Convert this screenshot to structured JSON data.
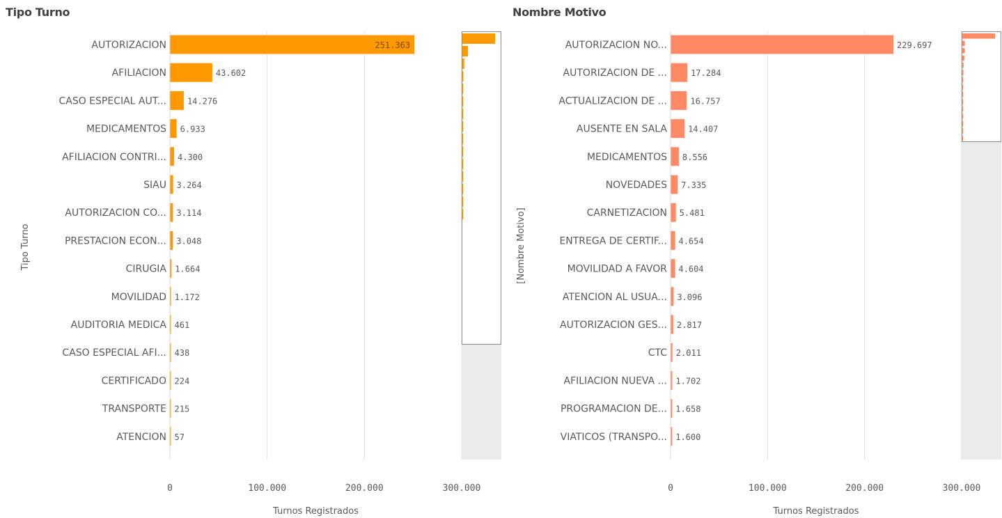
{
  "chart_data": [
    {
      "type": "bar",
      "orientation": "horizontal",
      "title": "Tipo Turno",
      "xlabel": "Turnos Registrados",
      "ylabel": "Tipo Turno",
      "xlim": [
        0,
        300000
      ],
      "x_ticks": [
        "0",
        "100.000",
        "200.000",
        "300.000"
      ],
      "grid": true,
      "color": "#FF9900",
      "has_minimap": true,
      "categories": [
        "AUTORIZACION",
        "AFILIACION",
        "CASO ESPECIAL AUT...",
        "MEDICAMENTOS",
        "AFILIACION CONTRI...",
        "SIAU",
        "AUTORIZACION CO...",
        "PRESTACION ECON...",
        "CIRUGIA",
        "MOVILIDAD",
        "AUDITORIA MEDICA",
        "CASO ESPECIAL AFI...",
        "CERTIFICADO",
        "TRANSPORTE",
        "ATENCION"
      ],
      "values": [
        251363,
        43602,
        14276,
        6933,
        4300,
        3264,
        3114,
        3048,
        1664,
        1172,
        461,
        438,
        224,
        215,
        57
      ],
      "value_labels": [
        "251.363",
        "43.602",
        "14.276",
        "6.933",
        "4.300",
        "3.264",
        "3.114",
        "3.048",
        "1.664",
        "1.172",
        "461",
        "438",
        "224",
        "215",
        "57"
      ]
    },
    {
      "type": "bar",
      "orientation": "horizontal",
      "title": "Nombre Motivo",
      "xlabel": "Turnos Registrados",
      "ylabel": "[Nombre Motivo]",
      "xlim": [
        0,
        300000
      ],
      "x_ticks": [
        "0",
        "100.000",
        "200.000",
        "300.000"
      ],
      "grid": true,
      "color": "#FF8A65",
      "has_minimap": true,
      "categories": [
        "AUTORIZACION NO...",
        "AUTORIZACION DE ...",
        "ACTUALIZACION DE ...",
        "AUSENTE EN SALA",
        "MEDICAMENTOS",
        "NOVEDADES",
        "CARNETIZACION",
        "ENTREGA DE CERTIF...",
        "MOVILIDAD A FAVOR",
        "ATENCION AL USUA...",
        "AUTORIZACION GES...",
        "CTC",
        "AFILIACION NUEVA ...",
        "PROGRAMACION DE...",
        "VIATICOS (TRANSPO..."
      ],
      "values": [
        229697,
        17284,
        16757,
        14407,
        8556,
        7335,
        5481,
        4654,
        4604,
        3096,
        2817,
        2011,
        1702,
        1658,
        1600
      ],
      "value_labels": [
        "229.697",
        "17.284",
        "16.757",
        "14.407",
        "8.556",
        "7.335",
        "5.481",
        "4.654",
        "4.604",
        "3.096",
        "2.817",
        "2.011",
        "1.702",
        "1.658",
        "1.600"
      ]
    }
  ]
}
